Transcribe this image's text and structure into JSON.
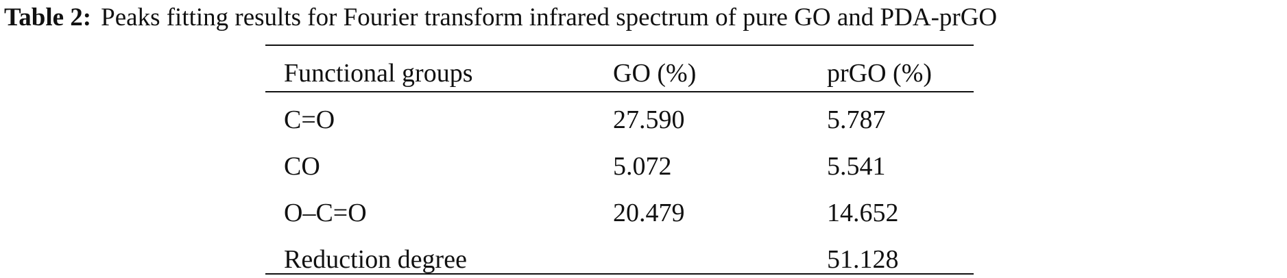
{
  "caption": {
    "label": "Table 2:",
    "text": "Peaks fitting results for Fourier transform infrared spectrum of pure GO and PDA-prGO"
  },
  "table": {
    "header": [
      "Functional groups",
      "GO (%)",
      "prGO (%)"
    ],
    "rows": [
      {
        "group": "C=O",
        "go": "27.590",
        "prgo": "5.787"
      },
      {
        "group": "CO",
        "go": "5.072",
        "prgo": "5.541"
      },
      {
        "group": "O–C=O",
        "go": "20.479",
        "prgo": "14.652"
      },
      {
        "group": "Reduction degree",
        "prgo": "51.128"
      }
    ]
  }
}
